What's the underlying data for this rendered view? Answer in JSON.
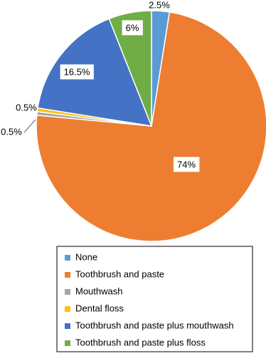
{
  "chart_data": {
    "type": "pie",
    "categories": [
      "None",
      "Toothbrush and paste",
      "Mouthwash",
      "Dental floss",
      "Toothbrush and paste plus mouthwash",
      "Toothbrush and paste plus floss"
    ],
    "values": [
      2.5,
      74,
      0.5,
      0.5,
      16.5,
      6
    ],
    "value_labels": [
      "2.5%",
      "74%",
      "0.5%",
      "0.5%",
      "16.5%",
      "6%"
    ],
    "colors": [
      "#5b9bd5",
      "#ed7d31",
      "#a5a5a5",
      "#ffc000",
      "#4472c4",
      "#70ad47"
    ],
    "legend": "bottom"
  }
}
